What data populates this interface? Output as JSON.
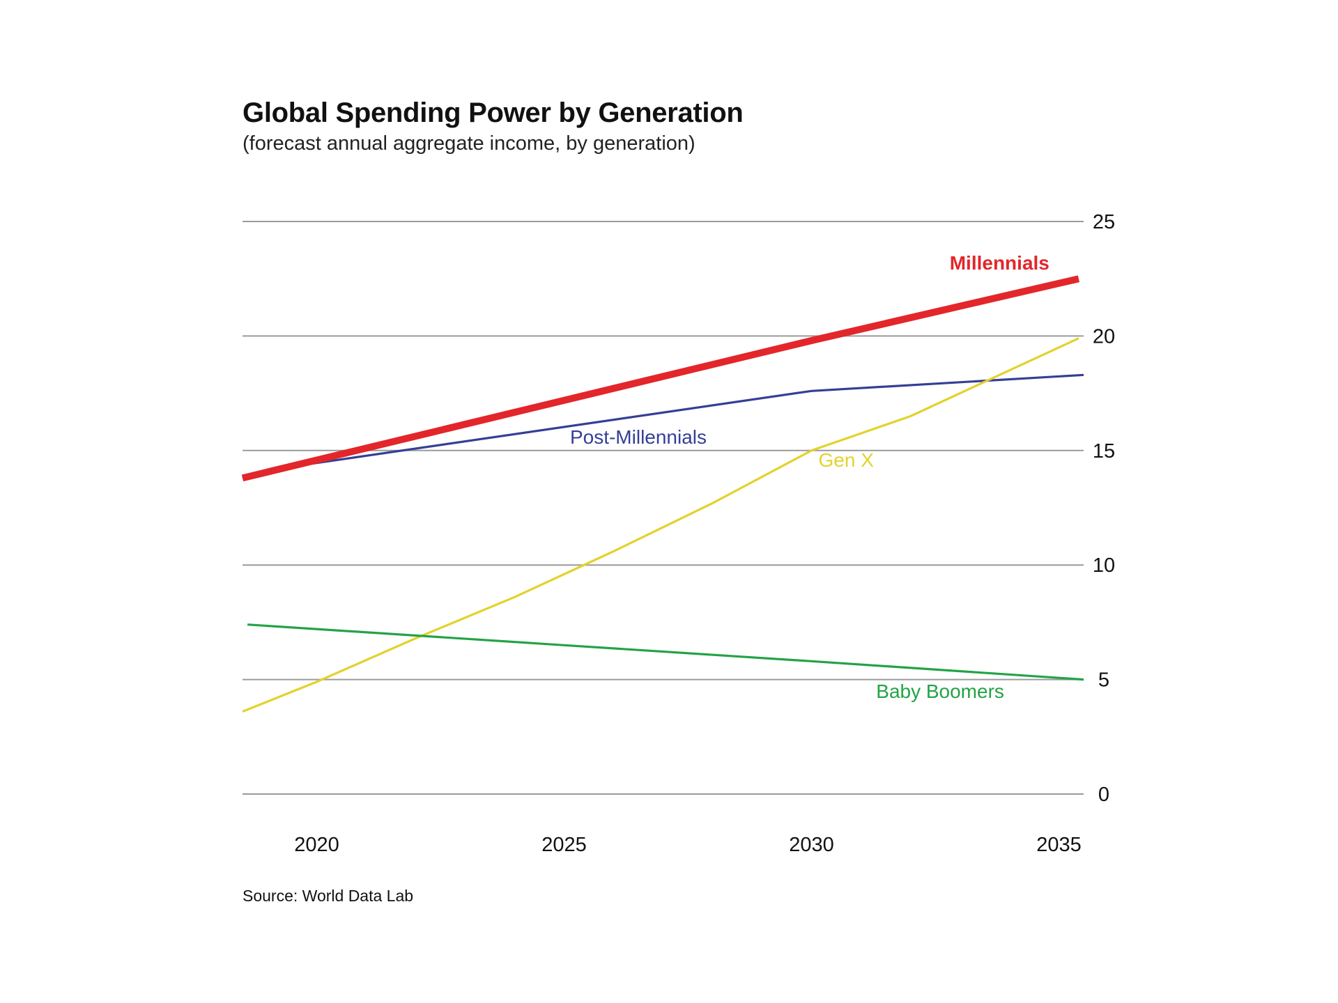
{
  "chart_data": {
    "type": "line",
    "title": "Global Spending Power by Generation",
    "subtitle": "(forecast annual aggregate income, by generation)",
    "source": "Source: World Data Lab",
    "xlabel": "",
    "ylabel": "",
    "xlim": [
      2018.5,
      2035.5
    ],
    "ylim": [
      0,
      25
    ],
    "x_ticks": [
      2020,
      2025,
      2030,
      2035
    ],
    "y_ticks": [
      0,
      5,
      10,
      15,
      20,
      25
    ],
    "y_axis_side": "right",
    "grid": "horizontal",
    "legend": "none (direct labels)",
    "series": [
      {
        "name": "Millennials",
        "color": "#e3262a",
        "weight": "bold",
        "label_at": [
          2033.8,
          22.9
        ],
        "points": [
          [
            2018.5,
            13.8
          ],
          [
            2030,
            19.8
          ],
          [
            2035.4,
            22.5
          ]
        ]
      },
      {
        "name": "Post-Millennials",
        "color": "#343f96",
        "weight": "normal",
        "label_at": [
          2026.5,
          15.3
        ],
        "points": [
          [
            2018.5,
            13.8
          ],
          [
            2019.5,
            14.3
          ],
          [
            2030,
            17.6
          ],
          [
            2035.5,
            18.3
          ]
        ]
      },
      {
        "name": "Gen X",
        "color": "#e3d22c",
        "weight": "normal",
        "label_at": [
          2030.7,
          14.3
        ],
        "points": [
          [
            2018.5,
            3.6
          ],
          [
            2020,
            4.9
          ],
          [
            2022,
            6.8
          ],
          [
            2024,
            8.6
          ],
          [
            2026,
            10.6
          ],
          [
            2028,
            12.7
          ],
          [
            2030,
            15.0
          ],
          [
            2032,
            16.5
          ],
          [
            2034,
            18.5
          ],
          [
            2035.4,
            19.9
          ]
        ]
      },
      {
        "name": "Baby Boomers",
        "color": "#22a346",
        "weight": "normal",
        "label_at": [
          2032.6,
          4.2
        ],
        "points": [
          [
            2018.6,
            7.4
          ],
          [
            2025,
            6.5
          ],
          [
            2030,
            5.8
          ],
          [
            2035.5,
            5.0
          ]
        ]
      }
    ]
  }
}
